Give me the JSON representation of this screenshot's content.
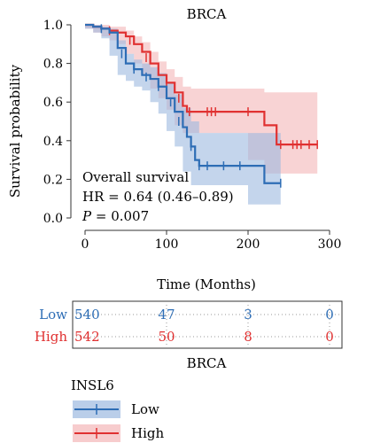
{
  "chart_data": {
    "type": "line",
    "title": "BRCA",
    "xlabel": "Time (Months)",
    "ylabel": "Survival probability",
    "xlim": [
      0,
      300
    ],
    "ylim": [
      0,
      1
    ],
    "x_ticks": [
      "0",
      "100",
      "200",
      "300"
    ],
    "y_ticks": [
      "0.0",
      "0.2",
      "0.4",
      "0.6",
      "0.8",
      "1.0"
    ],
    "grid": false,
    "annotations": {
      "line1": "Overall survival",
      "line2": "HR = 0.64 (0.46–0.89)",
      "p_label": "P",
      "p_value": " = 0.007"
    },
    "series": [
      {
        "name": "Low",
        "color": "#2d6db5",
        "ci_color": "#9db9e0",
        "points": [
          [
            0,
            1.0
          ],
          [
            10,
            0.99
          ],
          [
            20,
            0.98
          ],
          [
            30,
            0.96
          ],
          [
            40,
            0.88
          ],
          [
            50,
            0.8
          ],
          [
            60,
            0.77
          ],
          [
            70,
            0.74
          ],
          [
            80,
            0.72
          ],
          [
            90,
            0.68
          ],
          [
            100,
            0.62
          ],
          [
            110,
            0.55
          ],
          [
            120,
            0.47
          ],
          [
            125,
            0.42
          ],
          [
            130,
            0.37
          ],
          [
            135,
            0.3
          ],
          [
            140,
            0.27
          ],
          [
            160,
            0.27
          ],
          [
            180,
            0.27
          ],
          [
            200,
            0.27
          ],
          [
            218,
            0.27
          ],
          [
            220,
            0.18
          ],
          [
            240,
            0.18
          ]
        ],
        "ci_upper": [
          [
            0,
            1.0
          ],
          [
            10,
            1.0
          ],
          [
            20,
            0.99
          ],
          [
            30,
            0.98
          ],
          [
            40,
            0.92
          ],
          [
            50,
            0.85
          ],
          [
            60,
            0.82
          ],
          [
            70,
            0.8
          ],
          [
            80,
            0.78
          ],
          [
            90,
            0.75
          ],
          [
            100,
            0.7
          ],
          [
            110,
            0.64
          ],
          [
            120,
            0.57
          ],
          [
            130,
            0.5
          ],
          [
            140,
            0.44
          ],
          [
            160,
            0.44
          ],
          [
            180,
            0.44
          ],
          [
            200,
            0.44
          ],
          [
            220,
            0.44
          ],
          [
            240,
            0.44
          ]
        ],
        "ci_lower": [
          [
            0,
            0.99
          ],
          [
            10,
            0.98
          ],
          [
            20,
            0.96
          ],
          [
            30,
            0.93
          ],
          [
            40,
            0.84
          ],
          [
            50,
            0.74
          ],
          [
            60,
            0.71
          ],
          [
            70,
            0.68
          ],
          [
            80,
            0.66
          ],
          [
            90,
            0.6
          ],
          [
            100,
            0.54
          ],
          [
            110,
            0.45
          ],
          [
            120,
            0.37
          ],
          [
            130,
            0.24
          ],
          [
            140,
            0.17
          ],
          [
            160,
            0.17
          ],
          [
            180,
            0.17
          ],
          [
            200,
            0.17
          ],
          [
            220,
            0.07
          ],
          [
            240,
            0.07
          ]
        ],
        "censored": [
          [
            20,
            0.98
          ],
          [
            45,
            0.85
          ],
          [
            60,
            0.77
          ],
          [
            75,
            0.73
          ],
          [
            90,
            0.68
          ],
          [
            105,
            0.6
          ],
          [
            115,
            0.5
          ],
          [
            130,
            0.37
          ],
          [
            140,
            0.27
          ],
          [
            150,
            0.27
          ],
          [
            170,
            0.27
          ],
          [
            190,
            0.27
          ],
          [
            240,
            0.18
          ]
        ]
      },
      {
        "name": "High",
        "color": "#e03131",
        "ci_color": "#f4b6b8",
        "points": [
          [
            0,
            1.0
          ],
          [
            10,
            0.99
          ],
          [
            20,
            0.98
          ],
          [
            30,
            0.97
          ],
          [
            40,
            0.96
          ],
          [
            50,
            0.94
          ],
          [
            60,
            0.9
          ],
          [
            70,
            0.86
          ],
          [
            80,
            0.8
          ],
          [
            90,
            0.74
          ],
          [
            100,
            0.7
          ],
          [
            110,
            0.65
          ],
          [
            120,
            0.58
          ],
          [
            125,
            0.55
          ],
          [
            140,
            0.55
          ],
          [
            160,
            0.55
          ],
          [
            180,
            0.55
          ],
          [
            200,
            0.55
          ],
          [
            218,
            0.55
          ],
          [
            220,
            0.48
          ],
          [
            230,
            0.48
          ],
          [
            235,
            0.38
          ],
          [
            285,
            0.38
          ]
        ],
        "ci_upper": [
          [
            0,
            1.0
          ],
          [
            10,
            1.0
          ],
          [
            20,
            1.0
          ],
          [
            30,
            0.99
          ],
          [
            40,
            0.99
          ],
          [
            50,
            0.97
          ],
          [
            60,
            0.94
          ],
          [
            70,
            0.91
          ],
          [
            80,
            0.86
          ],
          [
            90,
            0.81
          ],
          [
            100,
            0.77
          ],
          [
            110,
            0.73
          ],
          [
            120,
            0.68
          ],
          [
            130,
            0.67
          ],
          [
            140,
            0.67
          ],
          [
            160,
            0.67
          ],
          [
            180,
            0.67
          ],
          [
            200,
            0.67
          ],
          [
            220,
            0.65
          ],
          [
            240,
            0.65
          ],
          [
            285,
            0.65
          ]
        ],
        "ci_lower": [
          [
            0,
            0.99
          ],
          [
            10,
            0.98
          ],
          [
            20,
            0.96
          ],
          [
            30,
            0.94
          ],
          [
            40,
            0.92
          ],
          [
            50,
            0.9
          ],
          [
            60,
            0.85
          ],
          [
            70,
            0.8
          ],
          [
            80,
            0.74
          ],
          [
            90,
            0.67
          ],
          [
            100,
            0.62
          ],
          [
            110,
            0.56
          ],
          [
            120,
            0.48
          ],
          [
            130,
            0.44
          ],
          [
            140,
            0.44
          ],
          [
            160,
            0.44
          ],
          [
            180,
            0.44
          ],
          [
            200,
            0.44
          ],
          [
            220,
            0.3
          ],
          [
            240,
            0.23
          ],
          [
            285,
            0.23
          ]
        ],
        "censored": [
          [
            30,
            0.97
          ],
          [
            55,
            0.92
          ],
          [
            75,
            0.83
          ],
          [
            100,
            0.7
          ],
          [
            115,
            0.62
          ],
          [
            128,
            0.55
          ],
          [
            150,
            0.55
          ],
          [
            155,
            0.55
          ],
          [
            160,
            0.55
          ],
          [
            200,
            0.55
          ],
          [
            240,
            0.38
          ],
          [
            255,
            0.38
          ],
          [
            260,
            0.38
          ],
          [
            265,
            0.38
          ],
          [
            275,
            0.38
          ],
          [
            285,
            0.38
          ]
        ]
      }
    ]
  },
  "risk_table": {
    "rows": [
      {
        "label": "Low",
        "color": "#2d6db5",
        "values": [
          "540",
          "47",
          "3",
          "0"
        ]
      },
      {
        "label": "High",
        "color": "#e03131",
        "values": [
          "542",
          "50",
          "8",
          "0"
        ]
      }
    ],
    "times": [
      0,
      100,
      200,
      300
    ]
  },
  "legend": {
    "title": "BRCA",
    "group_label": "INSL6",
    "items": [
      {
        "label": "Low",
        "color": "#2d6db5",
        "bg": "#9db9e0"
      },
      {
        "label": "High",
        "color": "#e03131",
        "bg": "#f4b6b8"
      }
    ]
  }
}
